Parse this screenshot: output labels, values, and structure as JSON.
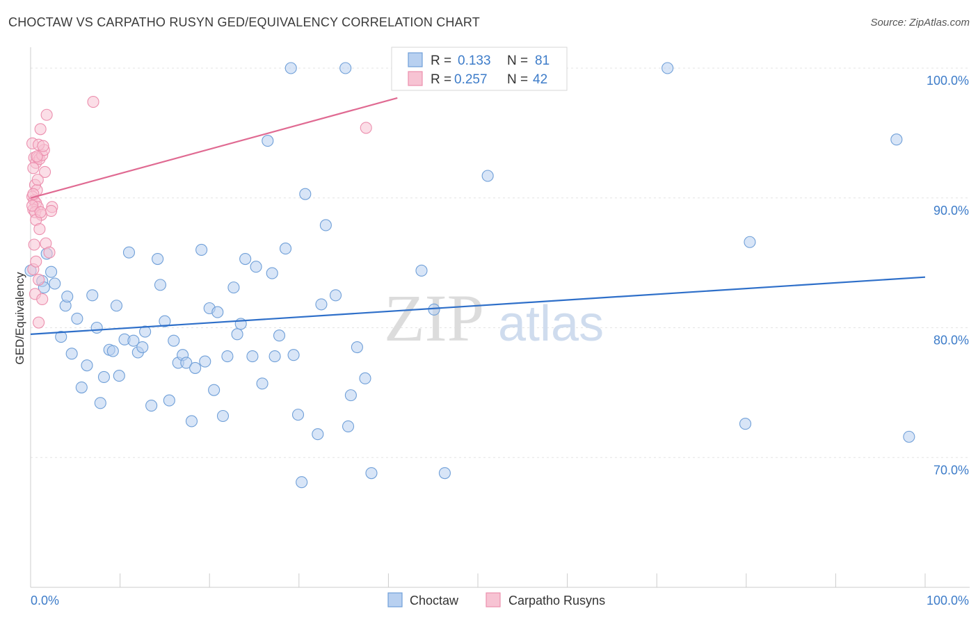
{
  "title": "CHOCTAW VS CARPATHO RUSYN GED/EQUIVALENCY CORRELATION CHART",
  "source": "Source: ZipAtlas.com",
  "watermark": {
    "zip": "ZIP",
    "atlas": "atlas"
  },
  "legend": {
    "rows": [
      {
        "r_label": "R =",
        "r_value": "0.133",
        "n_label": "N =",
        "n_value": "81"
      },
      {
        "r_label": "R =",
        "r_value": "0.257",
        "n_label": "N =",
        "n_value": "42"
      }
    ]
  },
  "bottom_legend": [
    "Choctaw",
    "Carpatho Rusyns"
  ],
  "colors": {
    "choctaw_fill": "#b8d0f0",
    "choctaw_stroke": "#6f9fd8",
    "choctaw_line": "#2e6fc9",
    "rusyn_fill": "#f7c3d3",
    "rusyn_stroke": "#ec8fae",
    "rusyn_line": "#e06a92",
    "grid": "#e3e3e3",
    "axis_text": "#3d7cc9"
  },
  "chart_data": {
    "type": "scatter",
    "title": "CHOCTAW VS CARPATHO RUSYN GED/EQUIVALENCY CORRELATION CHART",
    "xlabel": "",
    "ylabel": "GED/Equivalency",
    "xlim": [
      0,
      100
    ],
    "ylim": [
      60,
      101.5
    ],
    "x_tick_labels": [
      "0.0%",
      "100.0%"
    ],
    "y_ticks": [
      {
        "value": 100,
        "label": "100.0%"
      },
      {
        "value": 90,
        "label": "90.0%"
      },
      {
        "value": 80,
        "label": "80.0%"
      },
      {
        "value": 70,
        "label": "70.0%"
      }
    ],
    "grid": true,
    "series": [
      {
        "name": "Choctaw",
        "R": 0.133,
        "N": 81,
        "trend": {
          "x": [
            0,
            100
          ],
          "y": [
            79.5,
            83.9
          ]
        },
        "points": [
          [
            0.0,
            84.4
          ],
          [
            1.3,
            83.6
          ],
          [
            1.8,
            85.7
          ],
          [
            2.3,
            84.3
          ],
          [
            2.7,
            83.4
          ],
          [
            1.5,
            83.1
          ],
          [
            3.4,
            79.3
          ],
          [
            3.9,
            81.7
          ],
          [
            4.1,
            82.4
          ],
          [
            4.6,
            78.0
          ],
          [
            5.2,
            80.7
          ],
          [
            5.7,
            75.4
          ],
          [
            6.3,
            77.1
          ],
          [
            6.9,
            82.5
          ],
          [
            7.4,
            80.0
          ],
          [
            7.8,
            74.2
          ],
          [
            8.2,
            76.2
          ],
          [
            8.8,
            78.3
          ],
          [
            9.2,
            78.2
          ],
          [
            9.6,
            81.7
          ],
          [
            9.9,
            76.3
          ],
          [
            10.5,
            79.1
          ],
          [
            11.0,
            85.8
          ],
          [
            11.5,
            79.0
          ],
          [
            12.0,
            78.1
          ],
          [
            12.5,
            78.5
          ],
          [
            12.8,
            79.7
          ],
          [
            13.5,
            74.0
          ],
          [
            14.2,
            85.3
          ],
          [
            14.5,
            83.3
          ],
          [
            15.0,
            80.5
          ],
          [
            15.5,
            74.4
          ],
          [
            16.0,
            79.0
          ],
          [
            16.5,
            77.3
          ],
          [
            17.0,
            77.9
          ],
          [
            17.4,
            77.3
          ],
          [
            18.0,
            72.8
          ],
          [
            18.4,
            76.9
          ],
          [
            19.1,
            86.0
          ],
          [
            19.5,
            77.4
          ],
          [
            20.0,
            81.5
          ],
          [
            20.5,
            75.2
          ],
          [
            20.9,
            81.2
          ],
          [
            21.5,
            73.2
          ],
          [
            22.0,
            77.8
          ],
          [
            22.7,
            83.1
          ],
          [
            23.1,
            79.5
          ],
          [
            23.5,
            80.3
          ],
          [
            24.0,
            85.3
          ],
          [
            24.8,
            77.8
          ],
          [
            25.2,
            84.7
          ],
          [
            25.9,
            75.7
          ],
          [
            26.5,
            94.4
          ],
          [
            27.0,
            84.2
          ],
          [
            27.3,
            77.8
          ],
          [
            27.8,
            79.4
          ],
          [
            28.5,
            86.1
          ],
          [
            29.1,
            100.0
          ],
          [
            29.4,
            77.9
          ],
          [
            29.9,
            73.3
          ],
          [
            30.3,
            68.1
          ],
          [
            30.7,
            90.3
          ],
          [
            32.1,
            71.8
          ],
          [
            32.5,
            81.8
          ],
          [
            33.0,
            87.9
          ],
          [
            34.1,
            82.5
          ],
          [
            35.2,
            100.0
          ],
          [
            35.5,
            72.4
          ],
          [
            35.8,
            74.8
          ],
          [
            36.5,
            78.5
          ],
          [
            37.4,
            76.1
          ],
          [
            38.1,
            68.8
          ],
          [
            43.7,
            84.4
          ],
          [
            45.1,
            81.4
          ],
          [
            46.3,
            68.8
          ],
          [
            51.1,
            91.7
          ],
          [
            71.2,
            100.0
          ],
          [
            79.9,
            72.6
          ],
          [
            80.4,
            86.6
          ],
          [
            96.8,
            94.5
          ],
          [
            98.2,
            71.6
          ]
        ]
      },
      {
        "name": "Carpatho Rusyns",
        "R": 0.257,
        "N": 42,
        "trend": {
          "x": [
            0,
            41
          ],
          "y": [
            90.0,
            97.7
          ]
        },
        "points": [
          [
            0.2,
            94.2
          ],
          [
            0.4,
            93.1
          ],
          [
            0.6,
            92.7
          ],
          [
            0.8,
            93.1
          ],
          [
            1.0,
            93.0
          ],
          [
            1.3,
            93.3
          ],
          [
            1.5,
            93.7
          ],
          [
            0.3,
            92.3
          ],
          [
            0.9,
            94.1
          ],
          [
            1.1,
            95.3
          ],
          [
            1.8,
            96.4
          ],
          [
            0.5,
            91.0
          ],
          [
            0.7,
            90.6
          ],
          [
            0.2,
            90.1
          ],
          [
            0.4,
            89.8
          ],
          [
            0.6,
            89.6
          ],
          [
            0.8,
            89.3
          ],
          [
            0.3,
            89.1
          ],
          [
            0.5,
            88.9
          ],
          [
            1.2,
            88.7
          ],
          [
            0.6,
            88.3
          ],
          [
            1.0,
            87.6
          ],
          [
            0.4,
            86.4
          ],
          [
            1.7,
            86.5
          ],
          [
            2.1,
            85.8
          ],
          [
            0.3,
            84.5
          ],
          [
            0.9,
            83.7
          ],
          [
            0.5,
            82.6
          ],
          [
            1.3,
            82.2
          ],
          [
            0.9,
            80.4
          ],
          [
            0.2,
            89.4
          ],
          [
            1.6,
            92.0
          ],
          [
            2.4,
            89.3
          ],
          [
            2.3,
            89.0
          ],
          [
            7.0,
            97.4
          ],
          [
            37.5,
            95.4
          ],
          [
            0.7,
            93.2
          ],
          [
            1.4,
            94.0
          ],
          [
            0.3,
            90.3
          ],
          [
            0.8,
            91.4
          ],
          [
            1.1,
            88.9
          ],
          [
            0.6,
            85.1
          ]
        ]
      }
    ]
  }
}
